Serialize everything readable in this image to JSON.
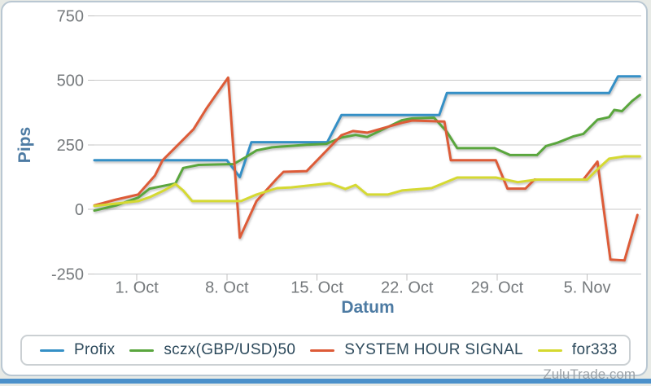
{
  "watermark": "ZuluTrade.com",
  "chart_data": {
    "type": "line",
    "title": "",
    "xlabel": "Datum",
    "ylabel": "Pips",
    "ylim": [
      -250,
      750
    ],
    "grid": true,
    "legend_position": "bottom",
    "yticks": [
      {
        "label": "750",
        "value": 750
      },
      {
        "label": "500",
        "value": 500
      },
      {
        "label": "250",
        "value": 250
      },
      {
        "label": "0",
        "value": 0
      },
      {
        "label": "-250",
        "value": -250
      }
    ],
    "x_unit": "days since 28 Sep",
    "xticks": [
      {
        "label": "1. Oct",
        "day": 3
      },
      {
        "label": "8. Oct",
        "day": 10
      },
      {
        "label": "15. Oct",
        "day": 17
      },
      {
        "label": "22. Oct",
        "day": 24
      },
      {
        "label": "29. Oct",
        "day": 31
      },
      {
        "label": "5. Nov",
        "day": 38
      }
    ],
    "series": [
      {
        "name": "Profix",
        "color": "#3590c6",
        "points": [
          [
            -0.3,
            190
          ],
          [
            10,
            190
          ],
          [
            11,
            125
          ],
          [
            11.9,
            260
          ],
          [
            17.8,
            260
          ],
          [
            18.9,
            365
          ],
          [
            26.5,
            365
          ],
          [
            27.1,
            450
          ],
          [
            39.7,
            450
          ],
          [
            40.4,
            515
          ],
          [
            42.1,
            515
          ]
        ]
      },
      {
        "name": "sczx(GBP/USD)50",
        "color": "#5aa63e",
        "points": [
          [
            -0.3,
            -5
          ],
          [
            1.4,
            15
          ],
          [
            3.1,
            45
          ],
          [
            4,
            80
          ],
          [
            5.2,
            92
          ],
          [
            6,
            100
          ],
          [
            6.6,
            160
          ],
          [
            7.8,
            172
          ],
          [
            10.5,
            175
          ],
          [
            11.4,
            200
          ],
          [
            12.3,
            228
          ],
          [
            13.5,
            240
          ],
          [
            16.2,
            250
          ],
          [
            17.7,
            253
          ],
          [
            18.9,
            278
          ],
          [
            20,
            288
          ],
          [
            20.9,
            280
          ],
          [
            23.6,
            345
          ],
          [
            24.4,
            352
          ],
          [
            26.1,
            355
          ],
          [
            27.1,
            300
          ],
          [
            27.9,
            237
          ],
          [
            30.8,
            237
          ],
          [
            32,
            210
          ],
          [
            34.1,
            210
          ],
          [
            34.8,
            245
          ],
          [
            35.7,
            258
          ],
          [
            36.9,
            282
          ],
          [
            37.7,
            292
          ],
          [
            38.8,
            347
          ],
          [
            39.7,
            357
          ],
          [
            40.1,
            385
          ],
          [
            40.7,
            380
          ],
          [
            41.5,
            420
          ],
          [
            42.1,
            443
          ]
        ]
      },
      {
        "name": "SYSTEM HOUR SIGNAL",
        "color": "#dd5b38",
        "points": [
          [
            -0.3,
            15
          ],
          [
            1.4,
            38
          ],
          [
            3.1,
            57
          ],
          [
            4.4,
            130
          ],
          [
            5,
            190
          ],
          [
            6.2,
            250
          ],
          [
            7.4,
            310
          ],
          [
            8.4,
            390
          ],
          [
            9.2,
            447
          ],
          [
            10.1,
            510
          ],
          [
            11,
            -110
          ],
          [
            12.3,
            32
          ],
          [
            13.9,
            120
          ],
          [
            14.4,
            145
          ],
          [
            16.2,
            148
          ],
          [
            18.9,
            287
          ],
          [
            19.8,
            303
          ],
          [
            20.9,
            297
          ],
          [
            23.6,
            335
          ],
          [
            24.4,
            344
          ],
          [
            26.9,
            340
          ],
          [
            27.4,
            190
          ],
          [
            30.9,
            190
          ],
          [
            31.8,
            80
          ],
          [
            33.2,
            80
          ],
          [
            33.9,
            115
          ],
          [
            37.7,
            115
          ],
          [
            38.8,
            185
          ],
          [
            39.8,
            -195
          ],
          [
            40.9,
            -198
          ],
          [
            41.9,
            -22
          ]
        ]
      },
      {
        "name": "for333",
        "color": "#d5d930",
        "points": [
          [
            -0.3,
            13
          ],
          [
            1.4,
            22
          ],
          [
            3.1,
            32
          ],
          [
            4,
            47
          ],
          [
            5.1,
            73
          ],
          [
            6,
            98
          ],
          [
            6.6,
            73
          ],
          [
            7.3,
            32
          ],
          [
            11.1,
            32
          ],
          [
            12.3,
            57
          ],
          [
            13.9,
            82
          ],
          [
            15,
            85
          ],
          [
            18,
            101
          ],
          [
            19.2,
            79
          ],
          [
            20,
            94
          ],
          [
            20.9,
            57
          ],
          [
            22.5,
            57
          ],
          [
            23.6,
            73
          ],
          [
            25.9,
            82
          ],
          [
            27.9,
            123
          ],
          [
            30.9,
            123
          ],
          [
            32.6,
            105
          ],
          [
            34.1,
            115
          ],
          [
            38,
            115
          ],
          [
            38.8,
            155
          ],
          [
            39.7,
            196
          ],
          [
            40.9,
            205
          ],
          [
            42.1,
            205
          ]
        ]
      }
    ]
  }
}
